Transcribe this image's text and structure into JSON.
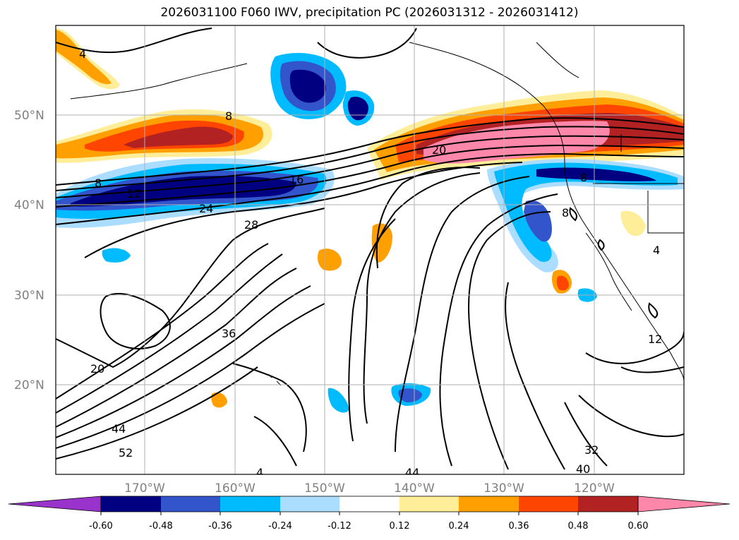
{
  "title": "2026031100 F060 IWV, precipitation PC (2026031312 - 2026031412)",
  "axes": {
    "lat_labels": [
      "50°N",
      "40°N",
      "30°N",
      "20°N"
    ],
    "lon_labels": [
      "170°W",
      "160°W",
      "150°W",
      "140°W",
      "130°W",
      "120°W"
    ],
    "lat_values": [
      50,
      40,
      30,
      20
    ],
    "lon_values": [
      -170,
      -160,
      -150,
      -140,
      -130,
      -120
    ],
    "lat_range": [
      10,
      60
    ],
    "lon_range": [
      -180,
      -110
    ]
  },
  "colorbar": {
    "ticks": [
      "-0.60",
      "-0.48",
      "-0.36",
      "-0.24",
      "-0.12",
      "0.12",
      "0.24",
      "0.36",
      "0.48",
      "0.60"
    ],
    "colors": [
      "#9933cc",
      "#000080",
      "#3355cc",
      "#00bbff",
      "#aaddff",
      "#ffffff",
      "#ffee99",
      "#ffa000",
      "#ff4500",
      "#b22222",
      "#ff88aa"
    ]
  },
  "contour_labels": [
    "4",
    "8",
    "8",
    "12",
    "16",
    "20",
    "24",
    "28",
    "36",
    "20",
    "44",
    "52",
    "8",
    "8",
    "4",
    "12",
    "32",
    "40",
    "44",
    "4"
  ]
}
